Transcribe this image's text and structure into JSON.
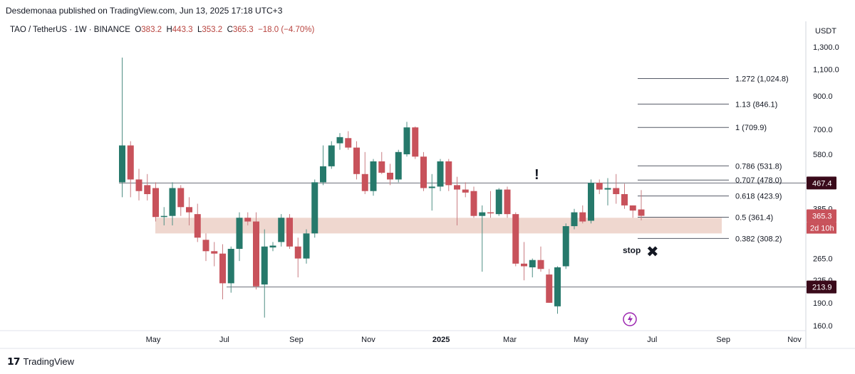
{
  "header": {
    "published": "Desdemonaa published on TradingView.com, Jun 13, 2025 17:18 UTC+3"
  },
  "legend": {
    "symbol": "TAO / TetherUS · 1W · BINANCE",
    "open_label": "O",
    "open": "383.2",
    "high_label": "H",
    "high": "443.3",
    "low_label": "L",
    "low": "353.2",
    "close_label": "C",
    "close": "365.3",
    "change": "−18.0 (−4.70%)"
  },
  "axis": {
    "currency": "USDT"
  },
  "footer": {
    "brand": "TradingView"
  },
  "colors": {
    "up": "#26796b",
    "down": "#c8525b",
    "zone": "#e9c9bf",
    "line": "#6b6f7a"
  },
  "chart_data": {
    "type": "candlestick",
    "y_scale": "log",
    "ylim": [
      155,
      1400
    ],
    "y_ticks": [
      {
        "value": 1300,
        "label": "1,300.0"
      },
      {
        "value": 1100,
        "label": "1,100.0"
      },
      {
        "value": 900,
        "label": "900.0"
      },
      {
        "value": 700,
        "label": "700.0"
      },
      {
        "value": 580,
        "label": "580.0"
      },
      {
        "value": 385,
        "label": "385.0"
      },
      {
        "value": 265,
        "label": "265.0"
      },
      {
        "value": 225,
        "label": "225.0"
      },
      {
        "value": 190,
        "label": "190.0"
      },
      {
        "value": 160,
        "label": "160.0"
      }
    ],
    "x_ticks": [
      {
        "label": "May",
        "bold": false,
        "index": 3.7
      },
      {
        "label": "Jul",
        "bold": false,
        "index": 12.2
      },
      {
        "label": "Sep",
        "bold": false,
        "index": 20.8
      },
      {
        "label": "Nov",
        "bold": false,
        "index": 29.4
      },
      {
        "label": "2025",
        "bold": true,
        "index": 38.1
      },
      {
        "label": "Mar",
        "bold": false,
        "index": 46.3
      },
      {
        "label": "May",
        "bold": false,
        "index": 54.8
      },
      {
        "label": "Jul",
        "bold": false,
        "index": 63.3
      },
      {
        "label": "Sep",
        "bold": false,
        "index": 71.8
      },
      {
        "label": "Nov",
        "bold": false,
        "index": 80.3
      }
    ],
    "candles": [
      {
        "o": 470,
        "h": 1200,
        "l": 420,
        "c": 620
      },
      {
        "o": 620,
        "h": 640,
        "l": 420,
        "c": 480
      },
      {
        "o": 480,
        "h": 520,
        "l": 410,
        "c": 440
      },
      {
        "o": 460,
        "h": 500,
        "l": 410,
        "c": 430
      },
      {
        "o": 450,
        "h": 470,
        "l": 350,
        "c": 362
      },
      {
        "o": 362,
        "h": 390,
        "l": 340,
        "c": 365
      },
      {
        "o": 365,
        "h": 470,
        "l": 340,
        "c": 450
      },
      {
        "o": 450,
        "h": 460,
        "l": 365,
        "c": 390
      },
      {
        "o": 390,
        "h": 420,
        "l": 340,
        "c": 375
      },
      {
        "o": 370,
        "h": 400,
        "l": 300,
        "c": 310
      },
      {
        "o": 305,
        "h": 320,
        "l": 260,
        "c": 280
      },
      {
        "o": 280,
        "h": 300,
        "l": 250,
        "c": 275
      },
      {
        "o": 275,
        "h": 295,
        "l": 195,
        "c": 220
      },
      {
        "o": 220,
        "h": 290,
        "l": 205,
        "c": 285
      },
      {
        "o": 285,
        "h": 375,
        "l": 260,
        "c": 360
      },
      {
        "o": 360,
        "h": 375,
        "l": 340,
        "c": 350
      },
      {
        "o": 350,
        "h": 375,
        "l": 210,
        "c": 215
      },
      {
        "o": 218,
        "h": 330,
        "l": 170,
        "c": 290
      },
      {
        "o": 288,
        "h": 300,
        "l": 280,
        "c": 292
      },
      {
        "o": 300,
        "h": 370,
        "l": 290,
        "c": 360
      },
      {
        "o": 360,
        "h": 370,
        "l": 285,
        "c": 290
      },
      {
        "o": 290,
        "h": 310,
        "l": 230,
        "c": 265
      },
      {
        "o": 265,
        "h": 330,
        "l": 255,
        "c": 320
      },
      {
        "o": 320,
        "h": 480,
        "l": 310,
        "c": 470
      },
      {
        "o": 470,
        "h": 620,
        "l": 460,
        "c": 530
      },
      {
        "o": 530,
        "h": 640,
        "l": 520,
        "c": 620
      },
      {
        "o": 630,
        "h": 680,
        "l": 600,
        "c": 660
      },
      {
        "o": 655,
        "h": 690,
        "l": 600,
        "c": 610
      },
      {
        "o": 610,
        "h": 640,
        "l": 480,
        "c": 500
      },
      {
        "o": 500,
        "h": 590,
        "l": 430,
        "c": 440
      },
      {
        "o": 440,
        "h": 560,
        "l": 425,
        "c": 550
      },
      {
        "o": 550,
        "h": 590,
        "l": 500,
        "c": 505
      },
      {
        "o": 505,
        "h": 540,
        "l": 460,
        "c": 480
      },
      {
        "o": 480,
        "h": 600,
        "l": 470,
        "c": 590
      },
      {
        "o": 580,
        "h": 740,
        "l": 570,
        "c": 710
      },
      {
        "o": 710,
        "h": 715,
        "l": 560,
        "c": 570
      },
      {
        "o": 570,
        "h": 590,
        "l": 440,
        "c": 450
      },
      {
        "o": 450,
        "h": 500,
        "l": 380,
        "c": 455
      },
      {
        "o": 455,
        "h": 560,
        "l": 440,
        "c": 550
      },
      {
        "o": 550,
        "h": 560,
        "l": 440,
        "c": 460
      },
      {
        "o": 460,
        "h": 490,
        "l": 340,
        "c": 445
      },
      {
        "o": 445,
        "h": 470,
        "l": 420,
        "c": 435
      },
      {
        "o": 440,
        "h": 455,
        "l": 360,
        "c": 365
      },
      {
        "o": 365,
        "h": 395,
        "l": 240,
        "c": 375
      },
      {
        "o": 375,
        "h": 440,
        "l": 360,
        "c": 372
      },
      {
        "o": 370,
        "h": 450,
        "l": 365,
        "c": 445
      },
      {
        "o": 445,
        "h": 455,
        "l": 360,
        "c": 370
      },
      {
        "o": 370,
        "h": 375,
        "l": 250,
        "c": 255
      },
      {
        "o": 255,
        "h": 300,
        "l": 225,
        "c": 250
      },
      {
        "o": 248,
        "h": 265,
        "l": 230,
        "c": 262
      },
      {
        "o": 262,
        "h": 290,
        "l": 240,
        "c": 245
      },
      {
        "o": 235,
        "h": 245,
        "l": 190,
        "c": 190
      },
      {
        "o": 185,
        "h": 250,
        "l": 175,
        "c": 248
      },
      {
        "o": 250,
        "h": 345,
        "l": 245,
        "c": 338
      },
      {
        "o": 338,
        "h": 385,
        "l": 330,
        "c": 375
      },
      {
        "o": 375,
        "h": 395,
        "l": 345,
        "c": 350
      },
      {
        "o": 352,
        "h": 480,
        "l": 345,
        "c": 468
      },
      {
        "o": 468,
        "h": 480,
        "l": 430,
        "c": 445
      },
      {
        "o": 445,
        "h": 485,
        "l": 395,
        "c": 450
      },
      {
        "o": 450,
        "h": 500,
        "l": 400,
        "c": 430
      },
      {
        "o": 430,
        "h": 465,
        "l": 385,
        "c": 395
      },
      {
        "o": 395,
        "h": 395,
        "l": 360,
        "c": 380
      },
      {
        "o": 383.2,
        "h": 443.3,
        "l": 353.2,
        "c": 365.3
      }
    ],
    "horizontal_lines": [
      467.4,
      213.9
    ],
    "zone": {
      "low": 320,
      "high": 360
    },
    "fib_levels": [
      {
        "level": "1.272",
        "price": 1024.8,
        "label": "1.272 (1,024.8)"
      },
      {
        "level": "1.13",
        "price": 846.1,
        "label": "1.13 (846.1)"
      },
      {
        "level": "1",
        "price": 709.9,
        "label": "1 (709.9)"
      },
      {
        "level": "0.786",
        "price": 531.8,
        "label": "0.786 (531.8)"
      },
      {
        "level": "0.707",
        "price": 478.0,
        "label": "0.707 (478.0)"
      },
      {
        "level": "0.618",
        "price": 423.9,
        "label": "0.618 (423.9)"
      },
      {
        "level": "0.5",
        "price": 361.4,
        "label": "0.5 (361.4)"
      },
      {
        "level": "0.382",
        "price": 308.2,
        "label": "0.382 (308.2)"
      }
    ],
    "price_tags": [
      {
        "value": 467.4,
        "label": "467.4",
        "color": "#3a0a1a"
      },
      {
        "value": 213.9,
        "label": "213.9",
        "color": "#3a0a1a"
      },
      {
        "value": 365.3,
        "label": "365.3",
        "color": "#c8525b"
      }
    ],
    "countdown": "2d 10h",
    "annotations": {
      "exclaim": "!",
      "stop": "stop",
      "x_mark": "✖"
    }
  }
}
